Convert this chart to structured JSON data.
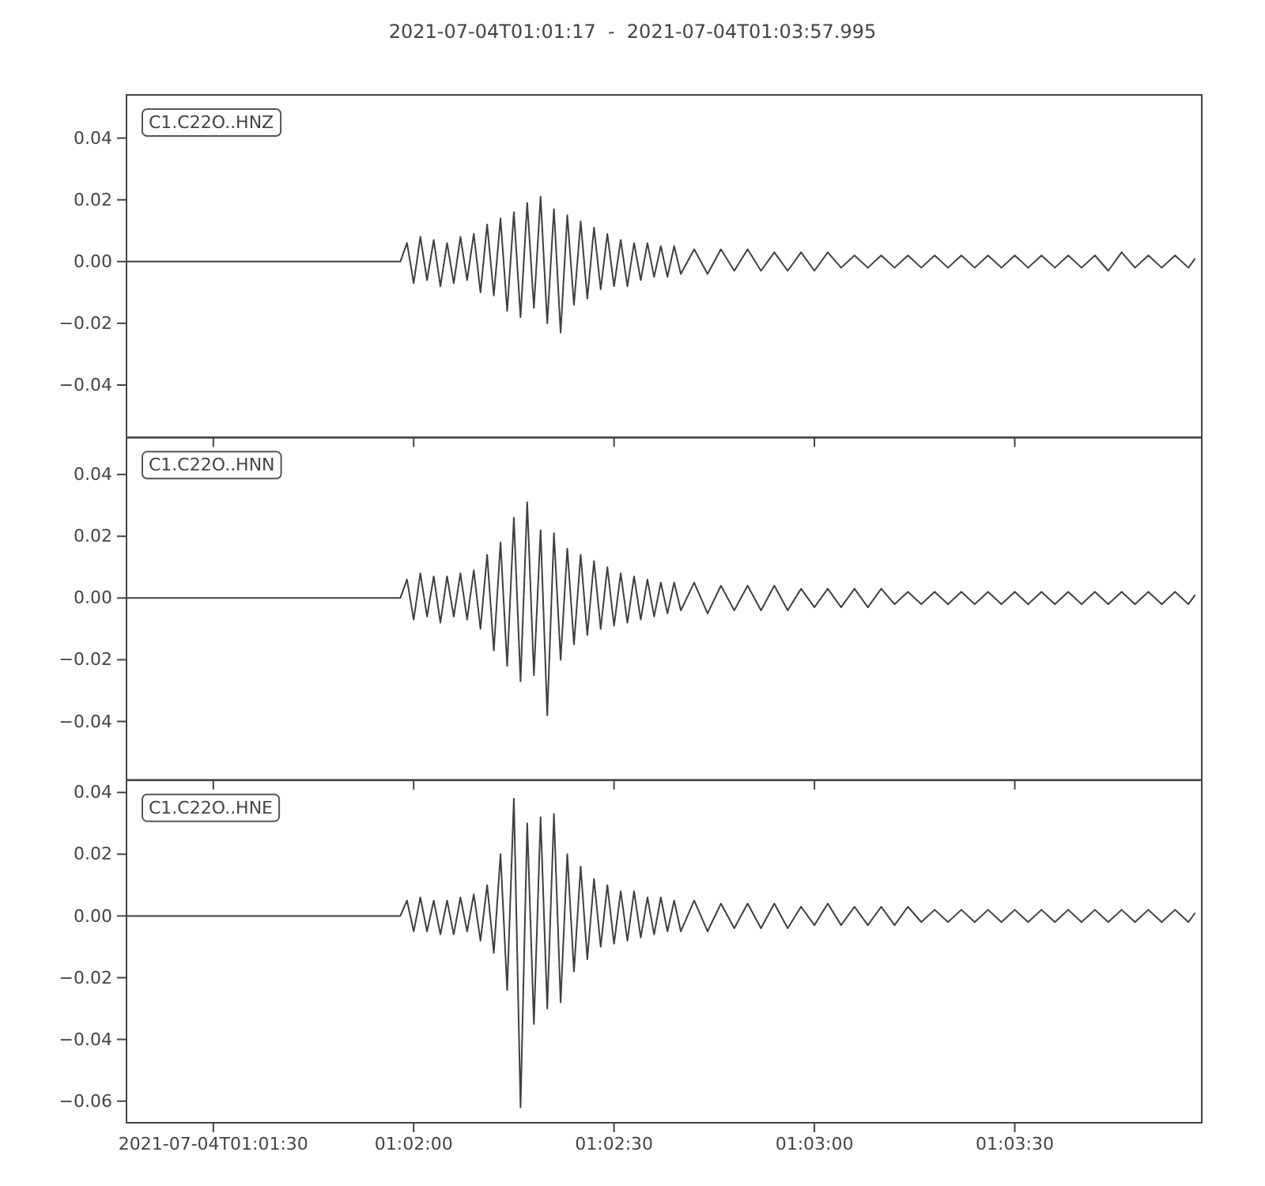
{
  "chart_data": [
    {
      "type": "line",
      "title": "2021-07-04T01:01:17  -  2021-07-04T01:03:57.995",
      "annotations": [
        "C1.C22O..HNZ"
      ],
      "x": [
        "2021-07-04T01:01:17",
        "2021-07-04T01:01:58",
        "2021-07-04T01:01:59",
        "2021-07-04T01:02:00",
        "2021-07-04T01:02:01",
        "2021-07-04T01:02:02",
        "2021-07-04T01:02:03",
        "2021-07-04T01:02:04",
        "2021-07-04T01:02:05",
        "2021-07-04T01:02:06",
        "2021-07-04T01:02:07",
        "2021-07-04T01:02:08",
        "2021-07-04T01:02:09",
        "2021-07-04T01:02:10",
        "2021-07-04T01:02:11",
        "2021-07-04T01:02:12",
        "2021-07-04T01:02:13",
        "2021-07-04T01:02:14",
        "2021-07-04T01:02:15",
        "2021-07-04T01:02:16",
        "2021-07-04T01:02:17",
        "2021-07-04T01:02:18",
        "2021-07-04T01:02:19",
        "2021-07-04T01:02:20",
        "2021-07-04T01:02:21",
        "2021-07-04T01:02:22",
        "2021-07-04T01:02:23",
        "2021-07-04T01:02:24",
        "2021-07-04T01:02:25",
        "2021-07-04T01:02:26",
        "2021-07-04T01:02:27",
        "2021-07-04T01:02:28",
        "2021-07-04T01:02:29",
        "2021-07-04T01:02:30",
        "2021-07-04T01:02:31",
        "2021-07-04T01:02:32",
        "2021-07-04T01:02:33",
        "2021-07-04T01:02:34",
        "2021-07-04T01:02:35",
        "2021-07-04T01:02:36",
        "2021-07-04T01:02:37",
        "2021-07-04T01:02:38",
        "2021-07-04T01:02:39",
        "2021-07-04T01:02:40",
        "2021-07-04T01:02:42",
        "2021-07-04T01:02:44",
        "2021-07-04T01:02:46",
        "2021-07-04T01:02:48",
        "2021-07-04T01:02:50",
        "2021-07-04T01:02:52",
        "2021-07-04T01:02:54",
        "2021-07-04T01:02:56",
        "2021-07-04T01:02:58",
        "2021-07-04T01:03:00",
        "2021-07-04T01:03:02",
        "2021-07-04T01:03:04",
        "2021-07-04T01:03:06",
        "2021-07-04T01:03:08",
        "2021-07-04T01:03:10",
        "2021-07-04T01:03:12",
        "2021-07-04T01:03:14",
        "2021-07-04T01:03:16",
        "2021-07-04T01:03:18",
        "2021-07-04T01:03:20",
        "2021-07-04T01:03:22",
        "2021-07-04T01:03:24",
        "2021-07-04T01:03:26",
        "2021-07-04T01:03:28",
        "2021-07-04T01:03:30",
        "2021-07-04T01:03:32",
        "2021-07-04T01:03:34",
        "2021-07-04T01:03:36",
        "2021-07-04T01:03:38",
        "2021-07-04T01:03:40",
        "2021-07-04T01:03:42",
        "2021-07-04T01:03:44",
        "2021-07-04T01:03:46",
        "2021-07-04T01:03:48",
        "2021-07-04T01:03:50",
        "2021-07-04T01:03:52",
        "2021-07-04T01:03:54",
        "2021-07-04T01:03:56",
        "2021-07-04T01:03:57"
      ],
      "series": [
        {
          "color": "#404040",
          "values": [
            0,
            0,
            0.006,
            -0.007,
            0.008,
            -0.006,
            0.007,
            -0.008,
            0.006,
            -0.007,
            0.008,
            -0.006,
            0.009,
            -0.01,
            0.012,
            -0.011,
            0.014,
            -0.016,
            0.016,
            -0.018,
            0.019,
            -0.015,
            0.021,
            -0.02,
            0.017,
            -0.023,
            0.015,
            -0.014,
            0.013,
            -0.012,
            0.011,
            -0.009,
            0.009,
            -0.008,
            0.007,
            -0.008,
            0.006,
            -0.006,
            0.006,
            -0.005,
            0.005,
            -0.005,
            0.005,
            -0.004,
            0.004,
            -0.004,
            0.004,
            -0.003,
            0.004,
            -0.003,
            0.003,
            -0.003,
            0.003,
            -0.003,
            0.003,
            -0.002,
            0.002,
            -0.002,
            0.002,
            -0.002,
            0.002,
            -0.002,
            0.002,
            -0.002,
            0.002,
            -0.002,
            0.002,
            -0.002,
            0.002,
            -0.002,
            0.002,
            -0.002,
            0.002,
            -0.002,
            0.002,
            -0.003,
            0.003,
            -0.002,
            0.002,
            -0.002,
            0.002,
            -0.002,
            0.001
          ]
        }
      ],
      "xlim": [
        "2021-07-04T01:01:17",
        "2021-07-04T01:03:57.995"
      ],
      "xticks": [
        {
          "value": "2021-07-04T01:01:30",
          "label": null
        },
        {
          "value": "2021-07-04T01:02:00",
          "label": null
        },
        {
          "value": "2021-07-04T01:02:30",
          "label": null
        },
        {
          "value": "2021-07-04T01:03:00",
          "label": null
        },
        {
          "value": "2021-07-04T01:03:30",
          "label": null
        }
      ],
      "ylim": [
        -0.057,
        0.054
      ],
      "yticks": [
        {
          "value": -0.04,
          "label": "−0.04"
        },
        {
          "value": -0.02,
          "label": "−0.02"
        },
        {
          "value": 0,
          "label": "0.00"
        },
        {
          "value": 0.02,
          "label": "0.02"
        },
        {
          "value": 0.04,
          "label": "0.04"
        }
      ],
      "tick_labels": "y"
    },
    {
      "type": "line",
      "annotations": [
        "C1.C22O..HNN"
      ],
      "x": [
        "2021-07-04T01:01:17",
        "2021-07-04T01:01:58",
        "2021-07-04T01:01:59",
        "2021-07-04T01:02:00",
        "2021-07-04T01:02:01",
        "2021-07-04T01:02:02",
        "2021-07-04T01:02:03",
        "2021-07-04T01:02:04",
        "2021-07-04T01:02:05",
        "2021-07-04T01:02:06",
        "2021-07-04T01:02:07",
        "2021-07-04T01:02:08",
        "2021-07-04T01:02:09",
        "2021-07-04T01:02:10",
        "2021-07-04T01:02:11",
        "2021-07-04T01:02:12",
        "2021-07-04T01:02:13",
        "2021-07-04T01:02:14",
        "2021-07-04T01:02:15",
        "2021-07-04T01:02:16",
        "2021-07-04T01:02:17",
        "2021-07-04T01:02:18",
        "2021-07-04T01:02:19",
        "2021-07-04T01:02:20",
        "2021-07-04T01:02:21",
        "2021-07-04T01:02:22",
        "2021-07-04T01:02:23",
        "2021-07-04T01:02:24",
        "2021-07-04T01:02:25",
        "2021-07-04T01:02:26",
        "2021-07-04T01:02:27",
        "2021-07-04T01:02:28",
        "2021-07-04T01:02:29",
        "2021-07-04T01:02:30",
        "2021-07-04T01:02:31",
        "2021-07-04T01:02:32",
        "2021-07-04T01:02:33",
        "2021-07-04T01:02:34",
        "2021-07-04T01:02:35",
        "2021-07-04T01:02:36",
        "2021-07-04T01:02:37",
        "2021-07-04T01:02:38",
        "2021-07-04T01:02:39",
        "2021-07-04T01:02:40",
        "2021-07-04T01:02:42",
        "2021-07-04T01:02:44",
        "2021-07-04T01:02:46",
        "2021-07-04T01:02:48",
        "2021-07-04T01:02:50",
        "2021-07-04T01:02:52",
        "2021-07-04T01:02:54",
        "2021-07-04T01:02:56",
        "2021-07-04T01:02:58",
        "2021-07-04T01:03:00",
        "2021-07-04T01:03:02",
        "2021-07-04T01:03:04",
        "2021-07-04T01:03:06",
        "2021-07-04T01:03:08",
        "2021-07-04T01:03:10",
        "2021-07-04T01:03:12",
        "2021-07-04T01:03:14",
        "2021-07-04T01:03:16",
        "2021-07-04T01:03:18",
        "2021-07-04T01:03:20",
        "2021-07-04T01:03:22",
        "2021-07-04T01:03:24",
        "2021-07-04T01:03:26",
        "2021-07-04T01:03:28",
        "2021-07-04T01:03:30",
        "2021-07-04T01:03:32",
        "2021-07-04T01:03:34",
        "2021-07-04T01:03:36",
        "2021-07-04T01:03:38",
        "2021-07-04T01:03:40",
        "2021-07-04T01:03:42",
        "2021-07-04T01:03:44",
        "2021-07-04T01:03:46",
        "2021-07-04T01:03:48",
        "2021-07-04T01:03:50",
        "2021-07-04T01:03:52",
        "2021-07-04T01:03:54",
        "2021-07-04T01:03:56",
        "2021-07-04T01:03:57"
      ],
      "series": [
        {
          "color": "#404040",
          "values": [
            0,
            0,
            0.006,
            -0.007,
            0.008,
            -0.006,
            0.007,
            -0.008,
            0.007,
            -0.006,
            0.008,
            -0.007,
            0.009,
            -0.01,
            0.014,
            -0.017,
            0.018,
            -0.022,
            0.026,
            -0.027,
            0.031,
            -0.025,
            0.022,
            -0.038,
            0.021,
            -0.02,
            0.016,
            -0.015,
            0.014,
            -0.012,
            0.012,
            -0.01,
            0.01,
            -0.009,
            0.008,
            -0.008,
            0.007,
            -0.007,
            0.006,
            -0.006,
            0.005,
            -0.005,
            0.005,
            -0.004,
            0.005,
            -0.005,
            0.004,
            -0.004,
            0.004,
            -0.004,
            0.004,
            -0.004,
            0.003,
            -0.003,
            0.003,
            -0.003,
            0.003,
            -0.003,
            0.003,
            -0.002,
            0.002,
            -0.002,
            0.002,
            -0.002,
            0.002,
            -0.002,
            0.002,
            -0.002,
            0.002,
            -0.002,
            0.002,
            -0.002,
            0.002,
            -0.002,
            0.002,
            -0.002,
            0.002,
            -0.002,
            0.002,
            -0.002,
            0.002,
            -0.002,
            0.001
          ]
        }
      ],
      "xlim": [
        "2021-07-04T01:01:17",
        "2021-07-04T01:03:57.995"
      ],
      "xticks": [
        {
          "value": "2021-07-04T01:01:30",
          "label": null
        },
        {
          "value": "2021-07-04T01:02:00",
          "label": null
        },
        {
          "value": "2021-07-04T01:02:30",
          "label": null
        },
        {
          "value": "2021-07-04T01:03:00",
          "label": null
        },
        {
          "value": "2021-07-04T01:03:30",
          "label": null
        }
      ],
      "ylim": [
        -0.059,
        0.052
      ],
      "yticks": [
        {
          "value": -0.04,
          "label": "−0.04"
        },
        {
          "value": -0.02,
          "label": "−0.02"
        },
        {
          "value": 0,
          "label": "0.00"
        },
        {
          "value": 0.02,
          "label": "0.02"
        },
        {
          "value": 0.04,
          "label": "0.04"
        }
      ],
      "tick_labels": "y"
    },
    {
      "type": "line",
      "annotations": [
        "C1.C22O..HNE"
      ],
      "x": [
        "2021-07-04T01:01:17",
        "2021-07-04T01:01:58",
        "2021-07-04T01:01:59",
        "2021-07-04T01:02:00",
        "2021-07-04T01:02:01",
        "2021-07-04T01:02:02",
        "2021-07-04T01:02:03",
        "2021-07-04T01:02:04",
        "2021-07-04T01:02:05",
        "2021-07-04T01:02:06",
        "2021-07-04T01:02:07",
        "2021-07-04T01:02:08",
        "2021-07-04T01:02:09",
        "2021-07-04T01:02:10",
        "2021-07-04T01:02:11",
        "2021-07-04T01:02:12",
        "2021-07-04T01:02:13",
        "2021-07-04T01:02:14",
        "2021-07-04T01:02:15",
        "2021-07-04T01:02:16",
        "2021-07-04T01:02:17",
        "2021-07-04T01:02:18",
        "2021-07-04T01:02:19",
        "2021-07-04T01:02:20",
        "2021-07-04T01:02:21",
        "2021-07-04T01:02:22",
        "2021-07-04T01:02:23",
        "2021-07-04T01:02:24",
        "2021-07-04T01:02:25",
        "2021-07-04T01:02:26",
        "2021-07-04T01:02:27",
        "2021-07-04T01:02:28",
        "2021-07-04T01:02:29",
        "2021-07-04T01:02:30",
        "2021-07-04T01:02:31",
        "2021-07-04T01:02:32",
        "2021-07-04T01:02:33",
        "2021-07-04T01:02:34",
        "2021-07-04T01:02:35",
        "2021-07-04T01:02:36",
        "2021-07-04T01:02:37",
        "2021-07-04T01:02:38",
        "2021-07-04T01:02:39",
        "2021-07-04T01:02:40",
        "2021-07-04T01:02:42",
        "2021-07-04T01:02:44",
        "2021-07-04T01:02:46",
        "2021-07-04T01:02:48",
        "2021-07-04T01:02:50",
        "2021-07-04T01:02:52",
        "2021-07-04T01:02:54",
        "2021-07-04T01:02:56",
        "2021-07-04T01:02:58",
        "2021-07-04T01:03:00",
        "2021-07-04T01:03:02",
        "2021-07-04T01:03:04",
        "2021-07-04T01:03:06",
        "2021-07-04T01:03:08",
        "2021-07-04T01:03:10",
        "2021-07-04T01:03:12",
        "2021-07-04T01:03:14",
        "2021-07-04T01:03:16",
        "2021-07-04T01:03:18",
        "2021-07-04T01:03:20",
        "2021-07-04T01:03:22",
        "2021-07-04T01:03:24",
        "2021-07-04T01:03:26",
        "2021-07-04T01:03:28",
        "2021-07-04T01:03:30",
        "2021-07-04T01:03:32",
        "2021-07-04T01:03:34",
        "2021-07-04T01:03:36",
        "2021-07-04T01:03:38",
        "2021-07-04T01:03:40",
        "2021-07-04T01:03:42",
        "2021-07-04T01:03:44",
        "2021-07-04T01:03:46",
        "2021-07-04T01:03:48",
        "2021-07-04T01:03:50",
        "2021-07-04T01:03:52",
        "2021-07-04T01:03:54",
        "2021-07-04T01:03:56",
        "2021-07-04T01:03:57"
      ],
      "series": [
        {
          "color": "#404040",
          "values": [
            0,
            0,
            0.005,
            -0.005,
            0.006,
            -0.005,
            0.005,
            -0.006,
            0.005,
            -0.006,
            0.006,
            -0.005,
            0.007,
            -0.008,
            0.01,
            -0.012,
            0.02,
            -0.024,
            0.038,
            -0.062,
            0.03,
            -0.035,
            0.032,
            -0.03,
            0.033,
            -0.028,
            0.02,
            -0.018,
            0.016,
            -0.014,
            0.012,
            -0.01,
            0.01,
            -0.009,
            0.008,
            -0.008,
            0.008,
            -0.007,
            0.006,
            -0.006,
            0.006,
            -0.005,
            0.005,
            -0.005,
            0.005,
            -0.005,
            0.004,
            -0.004,
            0.004,
            -0.004,
            0.004,
            -0.004,
            0.003,
            -0.003,
            0.004,
            -0.003,
            0.003,
            -0.003,
            0.003,
            -0.003,
            0.003,
            -0.002,
            0.002,
            -0.002,
            0.002,
            -0.002,
            0.002,
            -0.002,
            0.002,
            -0.002,
            0.002,
            -0.002,
            0.002,
            -0.002,
            0.002,
            -0.002,
            0.002,
            -0.002,
            0.002,
            -0.002,
            0.002,
            -0.002,
            0.001
          ]
        }
      ],
      "xlim": [
        "2021-07-04T01:01:17",
        "2021-07-04T01:03:57.995"
      ],
      "xticks": [
        {
          "value": "2021-07-04T01:01:30",
          "label": "2021-07-04T01:01:30"
        },
        {
          "value": "2021-07-04T01:02:00",
          "label": "01:02:00"
        },
        {
          "value": "2021-07-04T01:02:30",
          "label": "01:02:30"
        },
        {
          "value": "2021-07-04T01:03:00",
          "label": "01:03:00"
        },
        {
          "value": "2021-07-04T01:03:30",
          "label": "01:03:30"
        }
      ],
      "ylim": [
        -0.067,
        0.044
      ],
      "yticks": [
        {
          "value": -0.06,
          "label": "−0.06"
        },
        {
          "value": -0.04,
          "label": "−0.04"
        },
        {
          "value": -0.02,
          "label": "−0.02"
        },
        {
          "value": 0,
          "label": "0.00"
        },
        {
          "value": 0.02,
          "label": "0.02"
        },
        {
          "value": 0.04,
          "label": "0.04"
        }
      ]
    }
  ]
}
